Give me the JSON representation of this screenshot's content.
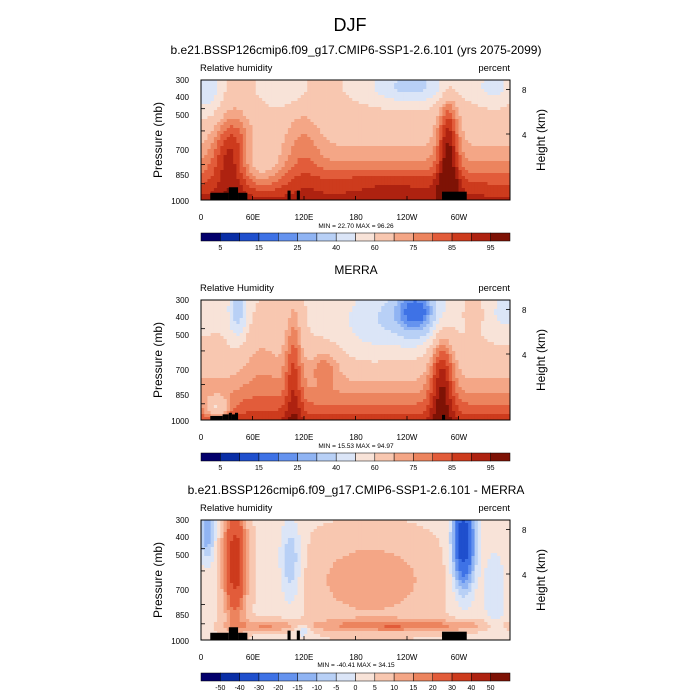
{
  "figure": {
    "title": "DJF"
  },
  "chart_data": [
    {
      "type": "contour",
      "title": "b.e21.BSSP126cmip6.f09_g17.CMIP6-SSP1-2.6.101 (yrs 2075-2099)",
      "left_label": "Relative humidity",
      "right_label": "percent",
      "ylabel": "Pressure (mb)",
      "y2label": "Height (km)",
      "xticks": [
        "0",
        "60E",
        "120E",
        "180",
        "120W",
        "60W"
      ],
      "yticks": [
        "300",
        "400",
        "500",
        "700",
        "850",
        "1000"
      ],
      "y2ticks": [
        "8",
        "4"
      ],
      "stats": "MIN = 22.70  MAX = 96.26",
      "min": 22.7,
      "max": 96.26,
      "colorbar_labels": [
        "5",
        "15",
        "25",
        "40",
        "60",
        "75",
        "85",
        "95"
      ],
      "colorbar_colors": [
        "#03006c",
        "#0a2ea6",
        "#1f4fcd",
        "#3e72e6",
        "#6593ef",
        "#90b4f3",
        "#b8d0f6",
        "#dbe5f7",
        "#f8e3d8",
        "#f8c7b0",
        "#f4a686",
        "#ec845e",
        "#e25c3a",
        "#cd3b1d",
        "#ae2210",
        "#7e1205"
      ],
      "colorbar_levels": [
        5,
        10,
        15,
        20,
        25,
        30,
        40,
        50,
        60,
        70,
        75,
        80,
        85,
        90,
        95
      ]
    },
    {
      "type": "contour",
      "title": "MERRA",
      "left_label": "Relative Humidity",
      "right_label": "percent",
      "ylabel": "Pressure (mb)",
      "y2label": "Height (km)",
      "xticks": [
        "0",
        "60E",
        "120E",
        "180",
        "120W",
        "60W"
      ],
      "yticks": [
        "300",
        "400",
        "500",
        "700",
        "850",
        "1000"
      ],
      "y2ticks": [
        "8",
        "4"
      ],
      "stats": "MIN = 15.53  MAX = 94.97",
      "min": 15.53,
      "max": 94.97,
      "colorbar_labels": [
        "5",
        "15",
        "25",
        "40",
        "60",
        "75",
        "85",
        "95"
      ],
      "colorbar_colors": [
        "#03006c",
        "#0a2ea6",
        "#1f4fcd",
        "#3e72e6",
        "#6593ef",
        "#90b4f3",
        "#b8d0f6",
        "#dbe5f7",
        "#f8e3d8",
        "#f8c7b0",
        "#f4a686",
        "#ec845e",
        "#e25c3a",
        "#cd3b1d",
        "#ae2210",
        "#7e1205"
      ],
      "colorbar_levels": [
        5,
        10,
        15,
        20,
        25,
        30,
        40,
        50,
        60,
        70,
        75,
        80,
        85,
        90,
        95
      ]
    },
    {
      "type": "contour",
      "title": "b.e21.BSSP126cmip6.f09_g17.CMIP6-SSP1-2.6.101 - MERRA",
      "left_label": "Relative humidity",
      "right_label": "percent",
      "ylabel": "Pressure (mb)",
      "y2label": "Height (km)",
      "xticks": [
        "0",
        "60E",
        "120E",
        "180",
        "120W",
        "60W"
      ],
      "yticks": [
        "300",
        "400",
        "500",
        "700",
        "850",
        "1000"
      ],
      "y2ticks": [
        "8",
        "4"
      ],
      "stats": "MIN = -40.41  MAX = 34.15",
      "min": -40.41,
      "max": 34.15,
      "colorbar_labels": [
        "-50",
        "-40",
        "-30",
        "-20",
        "-15",
        "-10",
        "-5",
        "0",
        "5",
        "10",
        "15",
        "20",
        "30",
        "40",
        "50"
      ],
      "colorbar_colors": [
        "#03006c",
        "#0a2ea6",
        "#1f4fcd",
        "#3e72e6",
        "#6593ef",
        "#90b4f3",
        "#b8d0f6",
        "#dbe5f7",
        "#f8e3d8",
        "#f8c7b0",
        "#f4a686",
        "#ec845e",
        "#e25c3a",
        "#cd3b1d",
        "#ae2210",
        "#7e1205"
      ],
      "colorbar_levels": [
        -50,
        -40,
        -30,
        -20,
        -15,
        -10,
        -5,
        0,
        5,
        10,
        15,
        20,
        30,
        40,
        50
      ]
    }
  ]
}
